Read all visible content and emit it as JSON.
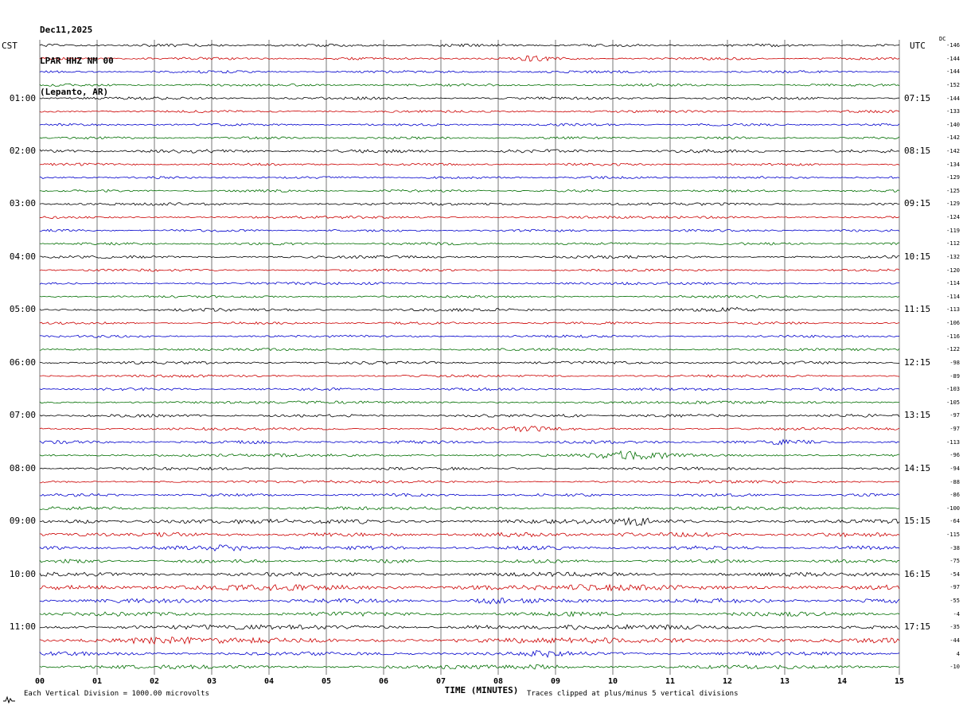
{
  "header": {
    "date": "Dec11,2025",
    "station": "LPAR HHZ NM 00",
    "location": "(Lepanto, AR)"
  },
  "axes": {
    "left_tz": "CST",
    "right_tz": "UTC",
    "dc_header": "DC",
    "x_label": "TIME (MINUTES)",
    "x_ticks": [
      "00",
      "01",
      "02",
      "03",
      "04",
      "05",
      "06",
      "07",
      "08",
      "09",
      "10",
      "11",
      "12",
      "13",
      "14",
      "15"
    ]
  },
  "footer": {
    "scale_note": "Each Vertical Division = 1000.00 microvolts",
    "clip_note": "Traces clipped at plus/minus 5 vertical divisions"
  },
  "chart_data": {
    "type": "line",
    "subtype": "helicorder-seismogram",
    "title": "LPAR HHZ NM 00 (Lepanto, AR) Dec11,2025",
    "xlabel": "TIME (MINUTES)",
    "x_range_minutes": [
      0,
      15
    ],
    "minutes_per_line": 15,
    "grid": true,
    "vertical_division_microvolts": 1000.0,
    "clip_divisions": 5,
    "trace_colors": {
      "black": "#000000",
      "red": "#cc0000",
      "blue": "#0000cc",
      "green": "#006e00"
    },
    "color_cycle": [
      "black",
      "red",
      "blue",
      "green"
    ],
    "first_labeled_row": 4,
    "label_every_n_rows": 4,
    "hour_labels_left": [
      "01:00",
      "02:00",
      "03:00",
      "04:00",
      "05:00",
      "06:00",
      "07:00",
      "08:00",
      "09:00",
      "10:00",
      "11:00"
    ],
    "hour_labels_right": [
      "07:15",
      "08:15",
      "09:15",
      "10:15",
      "11:15",
      "12:15",
      "13:15",
      "14:15",
      "15:15",
      "16:15",
      "17:15"
    ],
    "rows": [
      {
        "color": "black",
        "dc": -146,
        "amp": 1.6,
        "bursts": []
      },
      {
        "color": "red",
        "dc": -144,
        "amp": 1.5,
        "bursts": [
          {
            "m": 8.6,
            "w": 0.5,
            "mult": 2.2
          }
        ]
      },
      {
        "color": "blue",
        "dc": -144,
        "amp": 1.5,
        "bursts": []
      },
      {
        "color": "green",
        "dc": -152,
        "amp": 1.5,
        "bursts": []
      },
      {
        "color": "black",
        "dc": -144,
        "amp": 1.6,
        "bursts": []
      },
      {
        "color": "red",
        "dc": -133,
        "amp": 1.4,
        "bursts": []
      },
      {
        "color": "blue",
        "dc": -140,
        "amp": 1.4,
        "bursts": []
      },
      {
        "color": "green",
        "dc": -142,
        "amp": 1.4,
        "bursts": []
      },
      {
        "color": "black",
        "dc": -142,
        "amp": 2.0,
        "bursts": []
      },
      {
        "color": "red",
        "dc": -134,
        "amp": 1.4,
        "bursts": []
      },
      {
        "color": "blue",
        "dc": -129,
        "amp": 1.4,
        "bursts": []
      },
      {
        "color": "green",
        "dc": -125,
        "amp": 1.4,
        "bursts": []
      },
      {
        "color": "black",
        "dc": -129,
        "amp": 1.6,
        "bursts": []
      },
      {
        "color": "red",
        "dc": -124,
        "amp": 1.5,
        "bursts": []
      },
      {
        "color": "blue",
        "dc": -119,
        "amp": 1.4,
        "bursts": []
      },
      {
        "color": "green",
        "dc": -112,
        "amp": 1.5,
        "bursts": []
      },
      {
        "color": "black",
        "dc": -132,
        "amp": 1.6,
        "bursts": []
      },
      {
        "color": "red",
        "dc": -120,
        "amp": 1.4,
        "bursts": []
      },
      {
        "color": "blue",
        "dc": -114,
        "amp": 1.5,
        "bursts": []
      },
      {
        "color": "green",
        "dc": -114,
        "amp": 1.4,
        "bursts": []
      },
      {
        "color": "black",
        "dc": -113,
        "amp": 1.7,
        "bursts": [
          {
            "m": 12.1,
            "w": 0.4,
            "mult": 1.8
          }
        ]
      },
      {
        "color": "red",
        "dc": -106,
        "amp": 1.4,
        "bursts": []
      },
      {
        "color": "blue",
        "dc": -116,
        "amp": 1.4,
        "bursts": []
      },
      {
        "color": "green",
        "dc": -122,
        "amp": 1.4,
        "bursts": []
      },
      {
        "color": "black",
        "dc": -98,
        "amp": 1.7,
        "bursts": []
      },
      {
        "color": "red",
        "dc": -89,
        "amp": 1.5,
        "bursts": []
      },
      {
        "color": "blue",
        "dc": -103,
        "amp": 1.5,
        "bursts": []
      },
      {
        "color": "green",
        "dc": -105,
        "amp": 1.6,
        "bursts": []
      },
      {
        "color": "black",
        "dc": -97,
        "amp": 1.7,
        "bursts": [
          {
            "m": 9.3,
            "w": 0.4,
            "mult": 2.0
          }
        ]
      },
      {
        "color": "red",
        "dc": -97,
        "amp": 1.6,
        "bursts": [
          {
            "m": 8.5,
            "w": 0.5,
            "mult": 2.4
          }
        ]
      },
      {
        "color": "blue",
        "dc": -113,
        "amp": 1.8,
        "bursts": [
          {
            "m": 13.1,
            "w": 0.6,
            "mult": 1.8
          }
        ]
      },
      {
        "color": "green",
        "dc": -96,
        "amp": 1.8,
        "bursts": [
          {
            "m": 10.4,
            "w": 1.1,
            "mult": 2.8
          }
        ]
      },
      {
        "color": "black",
        "dc": -94,
        "amp": 1.7,
        "bursts": []
      },
      {
        "color": "red",
        "dc": -88,
        "amp": 1.6,
        "bursts": []
      },
      {
        "color": "blue",
        "dc": -86,
        "amp": 1.6,
        "bursts": []
      },
      {
        "color": "green",
        "dc": -100,
        "amp": 1.8,
        "bursts": []
      },
      {
        "color": "black",
        "dc": -64,
        "amp": 2.6,
        "bursts": [
          {
            "m": 0.8,
            "w": 0.5,
            "mult": 2.0
          },
          {
            "m": 5.6,
            "w": 0.4,
            "mult": 1.8
          },
          {
            "m": 10.4,
            "w": 0.5,
            "mult": 2.0
          }
        ]
      },
      {
        "color": "red",
        "dc": -115,
        "amp": 2.4,
        "bursts": [
          {
            "m": 0.9,
            "w": 0.5,
            "mult": 2.2
          },
          {
            "m": 10.3,
            "w": 0.4,
            "mult": 2.0
          }
        ]
      },
      {
        "color": "blue",
        "dc": -38,
        "amp": 2.2,
        "bursts": [
          {
            "m": 3.4,
            "w": 0.7,
            "mult": 2.2
          },
          {
            "m": 4.4,
            "w": 0.5,
            "mult": 2.0
          }
        ]
      },
      {
        "color": "green",
        "dc": -75,
        "amp": 2.0,
        "bursts": []
      },
      {
        "color": "black",
        "dc": -54,
        "amp": 2.4,
        "bursts": []
      },
      {
        "color": "red",
        "dc": -97,
        "amp": 3.4,
        "bursts": [
          {
            "m": 0.8,
            "w": 1.0,
            "mult": 1.7
          },
          {
            "m": 7.6,
            "w": 0.8,
            "mult": 1.5
          }
        ]
      },
      {
        "color": "blue",
        "dc": -55,
        "amp": 2.6,
        "bursts": [
          {
            "m": 7.8,
            "w": 0.6,
            "mult": 1.8
          }
        ]
      },
      {
        "color": "green",
        "dc": -4,
        "amp": 2.4,
        "bursts": []
      },
      {
        "color": "black",
        "dc": -35,
        "amp": 2.8,
        "bursts": [
          {
            "m": 7.6,
            "w": 0.8,
            "mult": 1.6
          }
        ]
      },
      {
        "color": "red",
        "dc": -44,
        "amp": 3.2,
        "bursts": [
          {
            "m": 2.0,
            "w": 1.0,
            "mult": 1.5
          },
          {
            "m": 12.6,
            "w": 0.6,
            "mult": 1.8
          }
        ]
      },
      {
        "color": "blue",
        "dc": 4,
        "amp": 2.2,
        "bursts": [
          {
            "m": 8.8,
            "w": 0.6,
            "mult": 1.8
          }
        ]
      },
      {
        "color": "green",
        "dc": -10,
        "amp": 2.2,
        "bursts": [
          {
            "m": 8.8,
            "w": 0.8,
            "mult": 1.6
          }
        ]
      }
    ]
  }
}
